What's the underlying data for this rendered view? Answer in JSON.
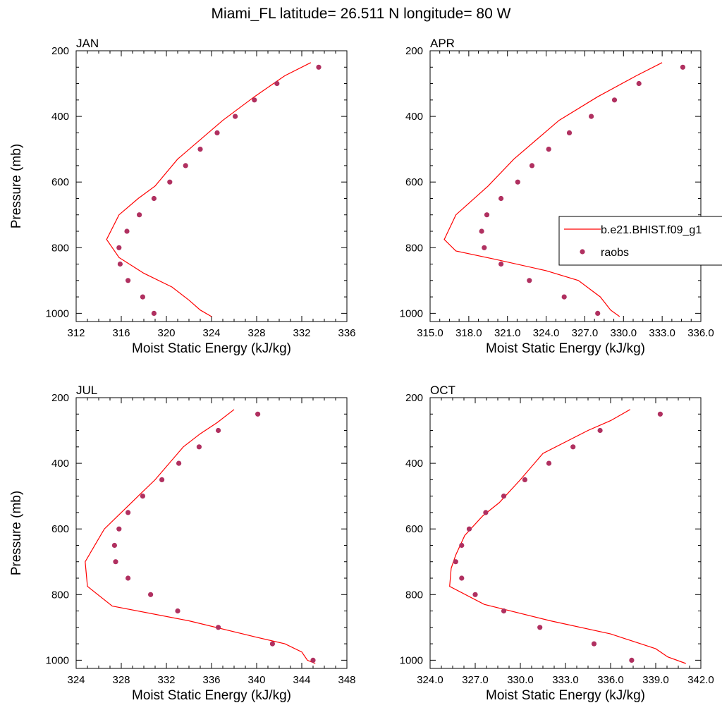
{
  "figure_title": "Miami_FL  latitude= 26.511 N longitude= 80 W",
  "legend": {
    "model_label": "b.e21.BHIST.f09_g1",
    "obs_label": "raobs"
  },
  "colors": {
    "model_line": "#ff0000",
    "obs_marker": "#b03060",
    "axes": "#000000"
  },
  "chart_data": [
    {
      "type": "line",
      "panel": "JAN",
      "xlabel": "Moist Static Energy (kJ/kg)",
      "ylabel": "Pressure (mb)",
      "xlim": [
        312,
        336
      ],
      "ylim": [
        200,
        1025
      ],
      "y_inverted": true,
      "xticks": [
        312,
        316,
        320,
        324,
        328,
        332,
        336
      ],
      "xtick_labels": [
        "312",
        "316",
        "320",
        "324",
        "328",
        "332",
        "336"
      ],
      "yticks": [
        200,
        400,
        600,
        800,
        1000
      ],
      "series": [
        {
          "name": "b.e21.BHIST.f09_g1",
          "kind": "line",
          "x": [
            332.8,
            330.5,
            327.8,
            325.0,
            321.0,
            319.0,
            317.5,
            315.8,
            314.7,
            315.8,
            318.0,
            320.5,
            322.0,
            323.0,
            324.0
          ],
          "y": [
            236,
            276,
            340,
            412,
            530,
            612,
            650,
            700,
            775,
            830,
            878,
            920,
            960,
            990,
            1010
          ]
        },
        {
          "name": "raobs",
          "kind": "scatter",
          "x": [
            333.5,
            329.8,
            327.8,
            326.1,
            324.5,
            323.0,
            321.7,
            320.3,
            318.9,
            317.6,
            316.5,
            315.8,
            315.9,
            316.6,
            317.9,
            318.9
          ],
          "y": [
            250,
            300,
            350,
            400,
            450,
            500,
            550,
            600,
            650,
            700,
            750,
            800,
            850,
            900,
            950,
            1000
          ]
        }
      ]
    },
    {
      "type": "line",
      "panel": "APR",
      "xlabel": "Moist Static Energy (kJ/kg)",
      "ylabel": "",
      "xlim": [
        315,
        336
      ],
      "ylim": [
        200,
        1025
      ],
      "y_inverted": true,
      "xticks": [
        315,
        318,
        321,
        324,
        327,
        330,
        333,
        336
      ],
      "xtick_labels": [
        "315.0",
        "318.0",
        "321.0",
        "324.0",
        "327.0",
        "330.0",
        "333.0",
        "336.0"
      ],
      "yticks": [
        200,
        400,
        600,
        800,
        1000
      ],
      "series": [
        {
          "name": "b.e21.BHIST.f09_g1",
          "kind": "line",
          "x": [
            333.0,
            331.0,
            328.0,
            325.0,
            321.5,
            319.5,
            317.0,
            316.1,
            317.0,
            320.0,
            324.0,
            326.5,
            328.2,
            329.0,
            329.7
          ],
          "y": [
            236,
            276,
            340,
            412,
            530,
            612,
            700,
            775,
            810,
            835,
            870,
            900,
            950,
            990,
            1010
          ]
        },
        {
          "name": "raobs",
          "kind": "scatter",
          "x": [
            334.6,
            331.2,
            329.3,
            327.5,
            325.8,
            324.2,
            322.9,
            321.8,
            320.5,
            319.4,
            319.0,
            319.2,
            320.5,
            322.7,
            325.4,
            328.0
          ],
          "y": [
            250,
            300,
            350,
            400,
            450,
            500,
            550,
            600,
            650,
            700,
            750,
            800,
            850,
            900,
            950,
            1000
          ]
        }
      ]
    },
    {
      "type": "line",
      "panel": "JUL",
      "xlabel": "Moist Static Energy (kJ/kg)",
      "ylabel": "Pressure (mb)",
      "xlim": [
        324,
        348
      ],
      "ylim": [
        200,
        1025
      ],
      "y_inverted": true,
      "xticks": [
        324,
        328,
        332,
        336,
        340,
        344,
        348
      ],
      "xtick_labels": [
        "324",
        "328",
        "332",
        "336",
        "340",
        "344",
        "348"
      ],
      "yticks": [
        200,
        400,
        600,
        800,
        1000
      ],
      "series": [
        {
          "name": "b.e21.BHIST.f09_g1",
          "kind": "line",
          "x": [
            338.0,
            336.5,
            335.0,
            333.5,
            331.0,
            329.5,
            328.0,
            326.5,
            324.8,
            325.0,
            327.2,
            334.0,
            340.0,
            342.5,
            344.0,
            344.5,
            345.2
          ],
          "y": [
            236,
            276,
            310,
            350,
            450,
            500,
            550,
            600,
            700,
            775,
            835,
            880,
            930,
            950,
            975,
            1000,
            1010
          ]
        },
        {
          "name": "raobs",
          "kind": "scatter",
          "x": [
            340.1,
            336.6,
            334.9,
            333.1,
            331.6,
            329.9,
            328.6,
            327.8,
            327.4,
            327.5,
            328.6,
            330.6,
            333.0,
            336.6,
            341.4,
            345.0
          ],
          "y": [
            250,
            300,
            350,
            400,
            450,
            500,
            550,
            600,
            650,
            700,
            750,
            800,
            850,
            900,
            950,
            1000
          ]
        }
      ]
    },
    {
      "type": "line",
      "panel": "OCT",
      "xlabel": "Moist Static Energy (kJ/kg)",
      "ylabel": "",
      "xlim": [
        324,
        342
      ],
      "ylim": [
        200,
        1025
      ],
      "y_inverted": true,
      "xticks": [
        324,
        327,
        330,
        333,
        336,
        339,
        342
      ],
      "xtick_labels": [
        "324.0",
        "327.0",
        "330.0",
        "333.0",
        "336.0",
        "339.0",
        "342.0"
      ],
      "yticks": [
        200,
        400,
        600,
        800,
        1000
      ],
      "series": [
        {
          "name": "b.e21.BHIST.f09_g1",
          "kind": "line",
          "x": [
            337.3,
            336.0,
            334.5,
            331.5,
            330.0,
            328.6,
            327.5,
            326.3,
            325.7,
            325.4,
            325.3,
            327.6,
            332.0,
            336.0,
            338.0,
            339.0,
            339.8,
            341.0
          ],
          "y": [
            236,
            270,
            300,
            370,
            450,
            520,
            560,
            620,
            680,
            720,
            775,
            830,
            880,
            920,
            950,
            965,
            990,
            1010
          ]
        },
        {
          "name": "raobs",
          "kind": "scatter",
          "x": [
            339.3,
            335.3,
            333.5,
            331.9,
            330.3,
            328.9,
            327.7,
            326.6,
            326.1,
            325.7,
            326.1,
            327.0,
            328.9,
            331.3,
            334.9,
            337.4
          ],
          "y": [
            250,
            300,
            350,
            400,
            450,
            500,
            550,
            600,
            650,
            700,
            750,
            800,
            850,
            900,
            950,
            1000
          ]
        }
      ]
    }
  ]
}
